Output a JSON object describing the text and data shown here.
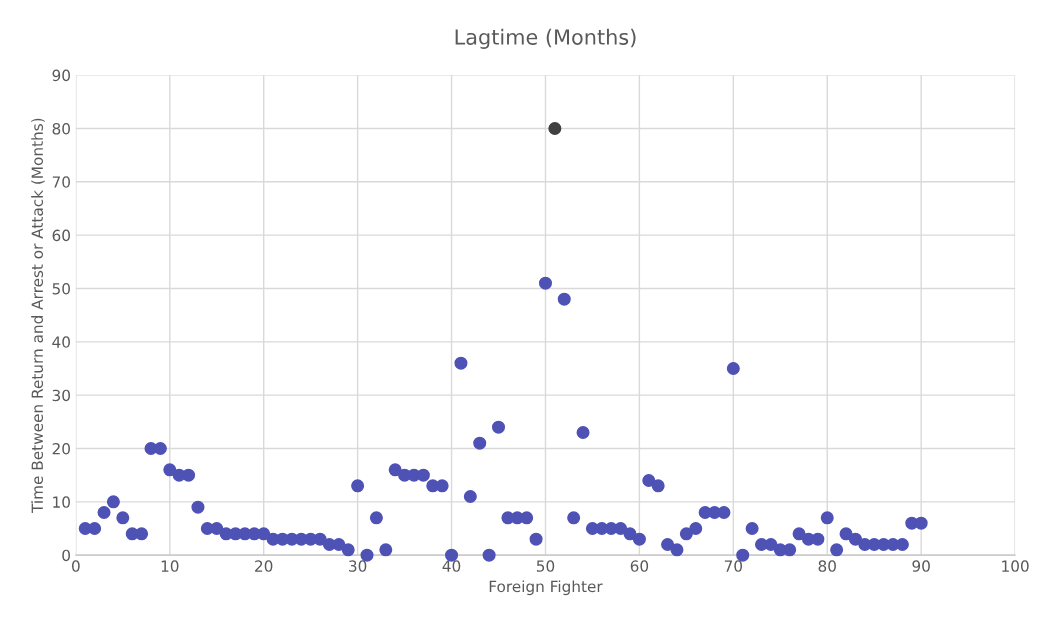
{
  "chart_data": {
    "type": "scatter",
    "title": "Lagtime (Months)",
    "xlabel": "Foreign Fighter",
    "ylabel": "Time Between Return and Arrest or Attack (Months)",
    "x": [
      1,
      2,
      3,
      4,
      5,
      6,
      7,
      8,
      9,
      10,
      11,
      12,
      13,
      14,
      15,
      16,
      17,
      18,
      19,
      20,
      21,
      22,
      23,
      24,
      25,
      26,
      27,
      28,
      29,
      30,
      31,
      32,
      33,
      34,
      35,
      36,
      37,
      38,
      39,
      40,
      41,
      42,
      43,
      44,
      45,
      46,
      47,
      48,
      49,
      50,
      51,
      52,
      53,
      54,
      55,
      56,
      57,
      58,
      59,
      60,
      61,
      62,
      63,
      64,
      65,
      66,
      67,
      68,
      69,
      70,
      71,
      72,
      73,
      74,
      75,
      76,
      77,
      78,
      79,
      80,
      81,
      82,
      83,
      84,
      85,
      86,
      87,
      88,
      89,
      90
    ],
    "values": [
      5,
      5,
      8,
      10,
      7,
      4,
      4,
      20,
      20,
      16,
      15,
      15,
      9,
      5,
      5,
      4,
      4,
      4,
      4,
      4,
      3,
      3,
      3,
      3,
      3,
      3,
      2,
      2,
      1,
      13,
      0,
      7,
      1,
      16,
      15,
      15,
      15,
      13,
      13,
      0,
      36,
      11,
      21,
      0,
      24,
      7,
      7,
      7,
      3,
      51,
      80,
      48,
      7,
      23,
      5,
      5,
      5,
      5,
      4,
      3,
      14,
      13,
      2,
      1,
      4,
      5,
      8,
      8,
      8,
      35,
      0,
      5,
      2,
      2,
      1,
      1,
      4,
      3,
      3,
      7,
      1,
      4,
      3,
      2,
      2,
      2,
      2,
      2,
      6,
      6
    ],
    "colors": [
      "#4f52b5",
      "#4f52b5",
      "#4f52b5",
      "#4f52b5",
      "#4f52b5",
      "#4f52b5",
      "#4f52b5",
      "#4f52b5",
      "#4f52b5",
      "#4f52b5",
      "#4f52b5",
      "#4f52b5",
      "#4f52b5",
      "#4f52b5",
      "#4f52b5",
      "#4f52b5",
      "#4f52b5",
      "#4f52b5",
      "#4f52b5",
      "#4f52b5",
      "#4f52b5",
      "#4f52b5",
      "#4f52b5",
      "#4f52b5",
      "#4f52b5",
      "#4f52b5",
      "#4f52b5",
      "#4f52b5",
      "#4f52b5",
      "#4f52b5",
      "#4f52b5",
      "#4f52b5",
      "#4f52b5",
      "#4f52b5",
      "#4f52b5",
      "#4f52b5",
      "#4f52b5",
      "#4f52b5",
      "#4f52b5",
      "#4f52b5",
      "#4f52b5",
      "#4f52b5",
      "#4f52b5",
      "#4f52b5",
      "#4f52b5",
      "#4f52b5",
      "#4f52b5",
      "#4f52b5",
      "#4f52b5",
      "#4f52b5",
      "#404040",
      "#4f52b5",
      "#4f52b5",
      "#4f52b5",
      "#4f52b5",
      "#4f52b5",
      "#4f52b5",
      "#4f52b5",
      "#4f52b5",
      "#4f52b5",
      "#4f52b5",
      "#4f52b5",
      "#4f52b5",
      "#4f52b5",
      "#4f52b5",
      "#4f52b5",
      "#4f52b5",
      "#4f52b5",
      "#4f52b5",
      "#4f52b5",
      "#4f52b5",
      "#4f52b5",
      "#4f52b5",
      "#4f52b5",
      "#4f52b5",
      "#4f52b5",
      "#4f52b5",
      "#4f52b5",
      "#4f52b5",
      "#4f52b5",
      "#4f52b5",
      "#4f52b5",
      "#4f52b5",
      "#4f52b5",
      "#4f52b5",
      "#4f52b5",
      "#4f52b5",
      "#4f52b5",
      "#4f52b5",
      "#4f52b5"
    ],
    "xlim": [
      0,
      100
    ],
    "xticks": [
      0,
      10,
      20,
      30,
      40,
      50,
      60,
      70,
      80,
      90,
      100
    ],
    "ylim": [
      0,
      90
    ],
    "yticks": [
      0,
      10,
      20,
      30,
      40,
      50,
      60,
      70,
      80,
      90
    ],
    "grid": true,
    "marker": "circle"
  }
}
